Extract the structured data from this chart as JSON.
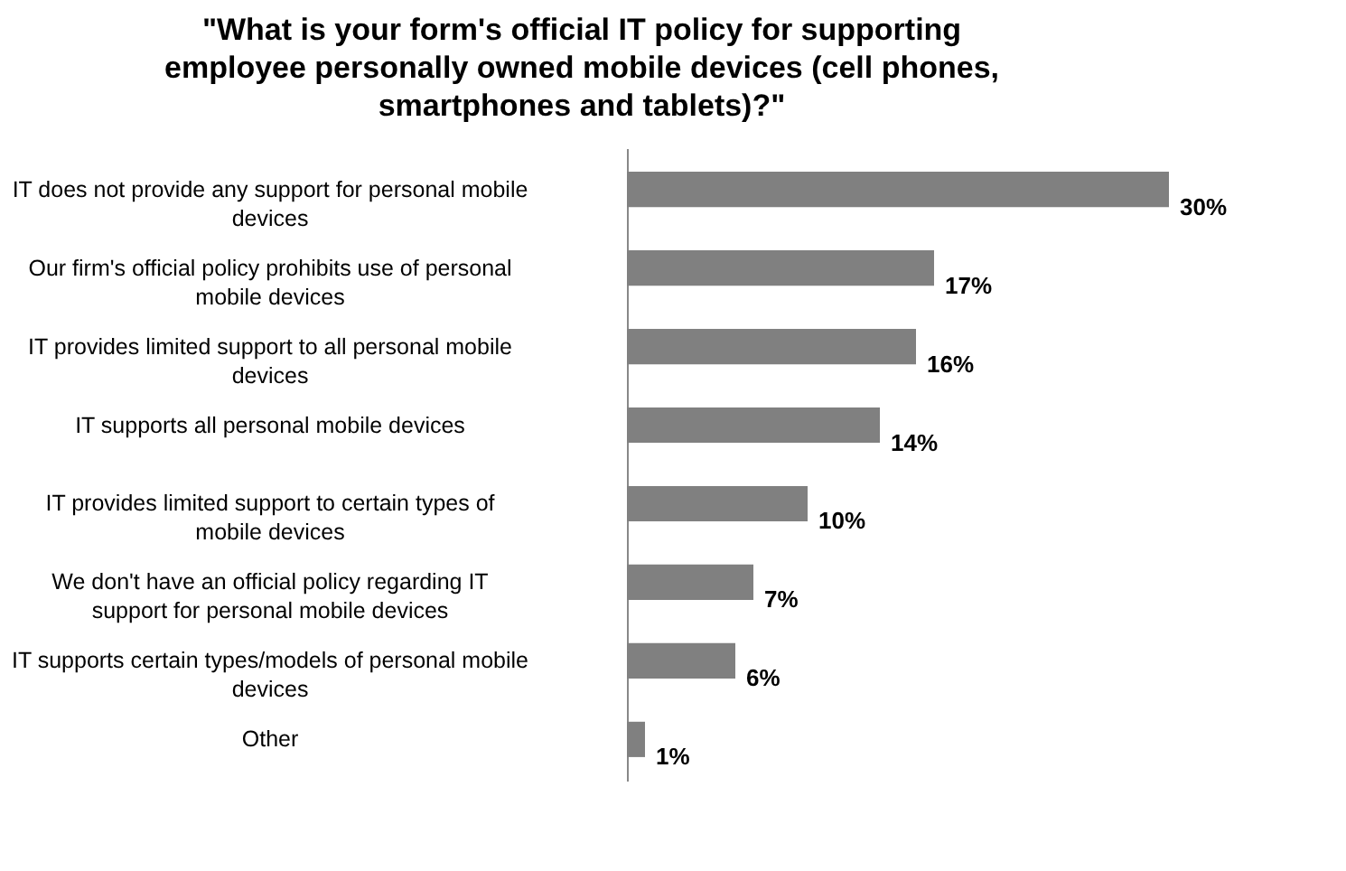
{
  "chart_data": {
    "type": "bar",
    "orientation": "horizontal",
    "title": "\"What is your form's official IT policy for supporting employee personally owned mobile devices (cell phones, smartphones and tablets)?\"",
    "categories": [
      "IT does not provide any support for personal mobile devices",
      "Our firm's official policy prohibits use of personal mobile devices",
      "IT provides limited support to all personal mobile devices",
      "IT supports all personal mobile devices",
      "IT provides limited support to certain types of mobile devices",
      "We don't have an official policy regarding IT support for personal mobile devices",
      "IT supports certain types/models of personal mobile devices",
      "Other"
    ],
    "values": [
      30,
      17,
      16,
      14,
      10,
      7,
      6,
      1
    ],
    "value_labels": [
      "30%",
      "17%",
      "16%",
      "14%",
      "10%",
      "7%",
      "6%",
      "1%"
    ],
    "color": "#808080"
  }
}
